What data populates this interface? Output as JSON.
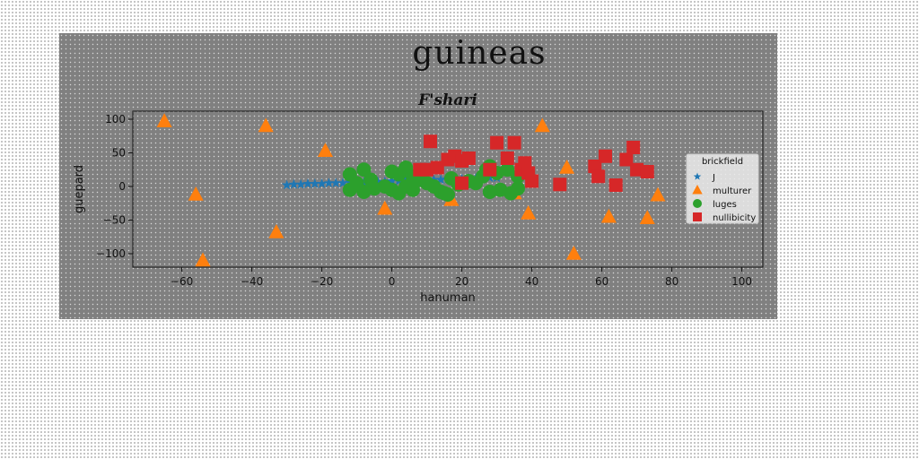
{
  "chart_data": {
    "type": "scatter",
    "suptitle": "guineas",
    "title": "F'shari",
    "xlabel": "hanuman",
    "ylabel": "guepard",
    "xlim": [
      -74,
      106
    ],
    "ylim": [
      -120,
      112
    ],
    "xticks": [
      -60,
      -40,
      -20,
      0,
      20,
      40,
      60,
      80,
      100
    ],
    "yticks": [
      100,
      50,
      0,
      -50,
      -100
    ],
    "grid": false,
    "legend": {
      "title": "brickfield",
      "placement": "right"
    },
    "series": [
      {
        "name": "J",
        "marker": "star",
        "color": "#1f77b4",
        "points": [
          [
            -30,
            2
          ],
          [
            -28,
            3
          ],
          [
            -26,
            3
          ],
          [
            -24,
            4
          ],
          [
            -22,
            4
          ],
          [
            -20,
            4
          ],
          [
            -18,
            5
          ],
          [
            -16,
            5
          ],
          [
            -14,
            5
          ],
          [
            -12,
            6
          ],
          [
            -10,
            6
          ],
          [
            -8,
            6
          ],
          [
            -6,
            7
          ],
          [
            -4,
            7
          ],
          [
            -2,
            7
          ],
          [
            0,
            8
          ],
          [
            2,
            8
          ],
          [
            4,
            9
          ],
          [
            6,
            9
          ],
          [
            8,
            9
          ],
          [
            10,
            10
          ],
          [
            12,
            10
          ],
          [
            14,
            10
          ],
          [
            16,
            11
          ],
          [
            18,
            11
          ],
          [
            20,
            11
          ],
          [
            22,
            12
          ],
          [
            24,
            12
          ],
          [
            26,
            12
          ],
          [
            28,
            13
          ],
          [
            30,
            13
          ]
        ]
      },
      {
        "name": "multurer",
        "marker": "triangle",
        "color": "#ff7f0e",
        "points": [
          [
            -65,
            97
          ],
          [
            -36,
            90
          ],
          [
            -19,
            53
          ],
          [
            -56,
            -12
          ],
          [
            -33,
            -68
          ],
          [
            -54,
            -110
          ],
          [
            -2,
            -33
          ],
          [
            17,
            -20
          ],
          [
            35,
            -10
          ],
          [
            39,
            -40
          ],
          [
            43,
            90
          ],
          [
            50,
            28
          ],
          [
            52,
            -100
          ],
          [
            62,
            -45
          ],
          [
            73,
            -47
          ],
          [
            76,
            -13
          ]
        ]
      },
      {
        "name": "luges",
        "marker": "circle",
        "color": "#2ca02c",
        "points": [
          [
            -12,
            18
          ],
          [
            -8,
            25
          ],
          [
            -6,
            10
          ],
          [
            -10,
            5
          ],
          [
            -5,
            -3
          ],
          [
            -8,
            -8
          ],
          [
            -12,
            -5
          ],
          [
            -2,
            0
          ],
          [
            0,
            22
          ],
          [
            2,
            18
          ],
          [
            4,
            28
          ],
          [
            6,
            15
          ],
          [
            8,
            10
          ],
          [
            2,
            -10
          ],
          [
            0,
            -5
          ],
          [
            6,
            -5
          ],
          [
            4,
            0
          ],
          [
            10,
            5
          ],
          [
            12,
            0
          ],
          [
            14,
            -8
          ],
          [
            16,
            -12
          ],
          [
            17,
            12
          ],
          [
            22,
            8
          ],
          [
            24,
            5
          ],
          [
            26,
            15
          ],
          [
            27,
            25
          ],
          [
            28,
            30
          ],
          [
            30,
            20
          ],
          [
            33,
            25
          ],
          [
            36,
            15
          ],
          [
            31,
            -5
          ],
          [
            28,
            -8
          ],
          [
            36,
            -3
          ],
          [
            34,
            -10
          ],
          [
            15,
            -10
          ],
          [
            19,
            3
          ]
        ]
      },
      {
        "name": "nullibicity",
        "marker": "square",
        "color": "#d62728",
        "points": [
          [
            11,
            67
          ],
          [
            8,
            25
          ],
          [
            10,
            25
          ],
          [
            13,
            28
          ],
          [
            16,
            40
          ],
          [
            18,
            45
          ],
          [
            20,
            5
          ],
          [
            20,
            38
          ],
          [
            22,
            42
          ],
          [
            28,
            25
          ],
          [
            30,
            65
          ],
          [
            33,
            42
          ],
          [
            35,
            65
          ],
          [
            37,
            25
          ],
          [
            38,
            35
          ],
          [
            39,
            20
          ],
          [
            40,
            8
          ],
          [
            48,
            3
          ],
          [
            58,
            30
          ],
          [
            59,
            15
          ],
          [
            61,
            45
          ],
          [
            64,
            2
          ],
          [
            67,
            40
          ],
          [
            69,
            58
          ],
          [
            70,
            25
          ],
          [
            73,
            22
          ]
        ]
      }
    ]
  }
}
